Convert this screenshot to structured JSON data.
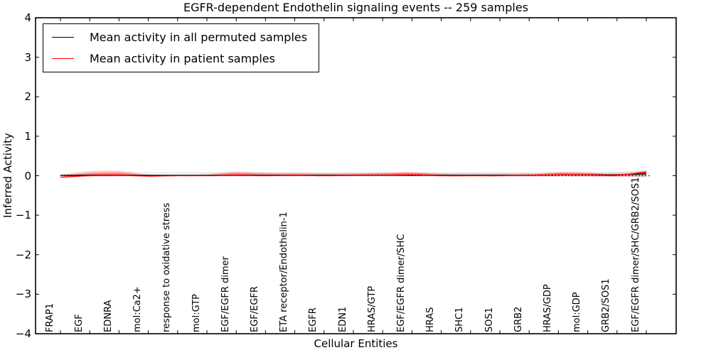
{
  "chart_data": {
    "type": "line",
    "title": "EGFR-dependent Endothelin signaling events -- 259 samples",
    "xlabel": "Cellular Entities",
    "ylabel": "Inferred Activity",
    "ylim": [
      -4,
      4
    ],
    "yticks": [
      -4,
      -3,
      -2,
      -1,
      0,
      1,
      2,
      3,
      4
    ],
    "grid": false,
    "legend_position": "upper-left",
    "categories": [
      "FRAP1",
      "EGF",
      "EDNRA",
      "mol:Ca2+",
      "response to oxidative stress",
      "mol:GTP",
      "EGF/EGFR dimer",
      "EGF/EGFR",
      "ETA receptor/Endothelin-1",
      "EGFR",
      "EDN1",
      "HRAS/GTP",
      "EGF/EGFR dimer/SHC",
      "HRAS",
      "SHC1",
      "SOS1",
      "GRB2",
      "HRAS/GDP",
      "mol:GDP",
      "GRB2/SOS1",
      "EGF/EGFR dimer/SHC/GRB2/SOS1"
    ],
    "series": [
      {
        "name": "Mean activity in all permuted samples",
        "color": "#000000",
        "values": [
          0.01,
          0.01,
          0.01,
          0.01,
          0.01,
          0.01,
          0.01,
          0.01,
          0.01,
          0.01,
          0.01,
          0.01,
          0.01,
          0.01,
          0.01,
          0.01,
          0.01,
          0.02,
          0.02,
          0.02,
          0.05
        ]
      },
      {
        "name": "Mean activity in patient samples",
        "color": "#ff0000",
        "values": [
          -0.04,
          0.0,
          0.01,
          -0.01,
          0.0,
          0.0,
          0.01,
          0.0,
          0.01,
          0.0,
          0.01,
          0.01,
          0.02,
          0.0,
          0.0,
          0.0,
          0.01,
          0.02,
          0.02,
          0.01,
          0.09
        ]
      }
    ],
    "bands": [
      {
        "name": "permuted-envelope",
        "color": "#999999",
        "opacity": 0.35,
        "upper": [
          0.08,
          0.08,
          0.08,
          0.08,
          0.08,
          0.08,
          0.08,
          0.08,
          0.08,
          0.08,
          0.08,
          0.08,
          0.08,
          0.08,
          0.08,
          0.08,
          0.08,
          0.08,
          0.08,
          0.09,
          0.13
        ],
        "lower": [
          -0.08,
          -0.08,
          -0.08,
          -0.08,
          -0.08,
          -0.08,
          -0.08,
          -0.08,
          -0.08,
          -0.08,
          -0.08,
          -0.08,
          -0.08,
          -0.08,
          -0.08,
          -0.08,
          -0.08,
          -0.08,
          -0.08,
          -0.07,
          -0.02
        ]
      },
      {
        "name": "patient-envelope",
        "color": "#ff0000",
        "opacity": 0.17,
        "upper": [
          0.03,
          0.12,
          0.13,
          0.04,
          0.03,
          0.04,
          0.11,
          0.08,
          0.07,
          0.06,
          0.06,
          0.08,
          0.1,
          0.05,
          0.02,
          0.02,
          0.03,
          0.1,
          0.09,
          0.04,
          0.13
        ],
        "lower": [
          -0.11,
          -0.14,
          -0.13,
          -0.05,
          -0.03,
          -0.04,
          -0.12,
          -0.09,
          -0.08,
          -0.07,
          -0.07,
          -0.08,
          -0.11,
          -0.05,
          -0.03,
          -0.02,
          -0.03,
          -0.08,
          -0.06,
          -0.04,
          -0.03
        ]
      }
    ],
    "zero_line": {
      "y": 0,
      "style": "dotted",
      "color": "#000000"
    }
  }
}
